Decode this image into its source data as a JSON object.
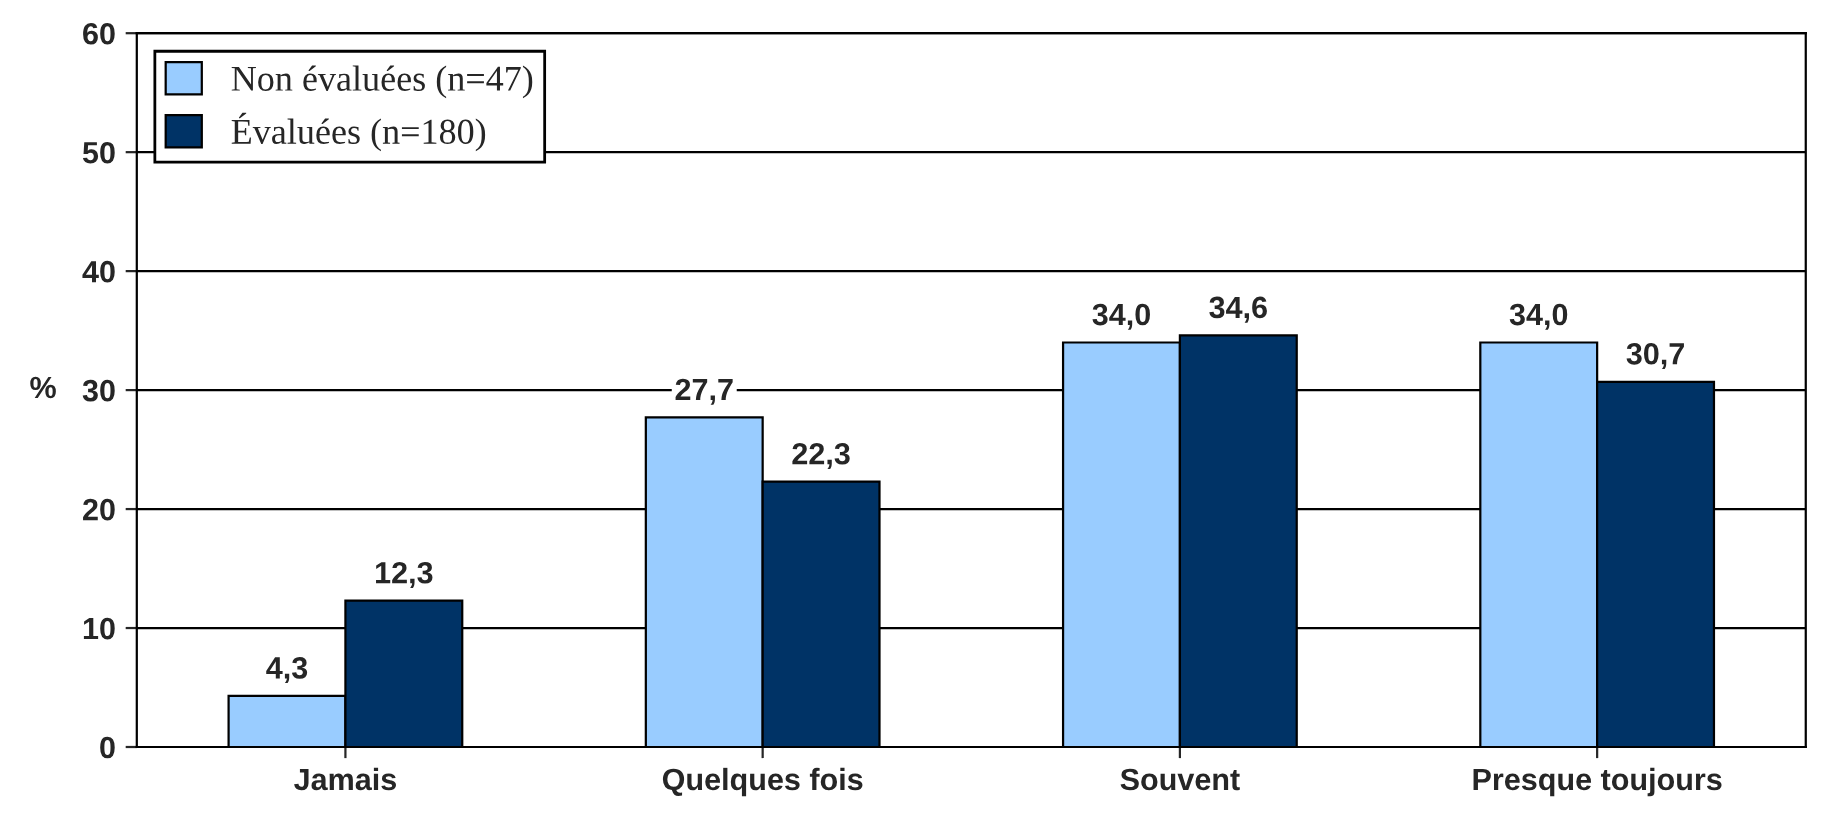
{
  "chart_data": {
    "type": "bar",
    "ylabel": "%",
    "categories": [
      "Jamais",
      "Quelques fois",
      "Souvent",
      "Presque toujours"
    ],
    "series": [
      {
        "name": "Non évaluées (n=47)",
        "color": "#99ccff",
        "values": [
          4.3,
          27.7,
          34.0,
          34.0
        ],
        "value_labels": [
          "4,3",
          "27,7",
          "34,0",
          "34,0"
        ]
      },
      {
        "name": "Évaluées (n=180)",
        "color": "#003366",
        "values": [
          12.3,
          22.3,
          34.6,
          30.7
        ],
        "value_labels": [
          "12,3",
          "22,3",
          "34,6",
          "30,7"
        ]
      }
    ],
    "ylim": [
      0,
      60
    ],
    "yticks": [
      0,
      10,
      20,
      30,
      40,
      50,
      60
    ],
    "grid": "y",
    "legend": "top left"
  }
}
